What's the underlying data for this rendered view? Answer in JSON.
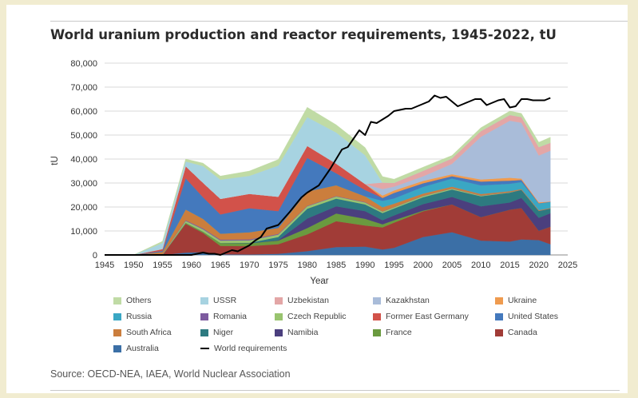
{
  "title": "World uranium production and reactor requirements, 1945-2022, tU",
  "source": "Source: OECD-NEA, IAEA, World Nuclear Association",
  "chart_data": {
    "type": "area",
    "title": "World uranium production and reactor requirements, 1945-2022, tU",
    "xlabel": "Year",
    "ylabel": "tU",
    "xlim": [
      1945,
      2025
    ],
    "ylim": [
      0,
      80000
    ],
    "xticks": [
      "1945",
      "1950",
      "1955",
      "1960",
      "1965",
      "1970",
      "1975",
      "1980",
      "1985",
      "1990",
      "1995",
      "2000",
      "2005",
      "2010",
      "2015",
      "2020",
      "2025"
    ],
    "yticks": [
      "0",
      "10,000",
      "20,000",
      "30,000",
      "40,000",
      "50,000",
      "60,000",
      "70,000",
      "80,000"
    ],
    "grid": true,
    "legend_position": "bottom",
    "x": [
      1945,
      1950,
      1955,
      1959,
      1962,
      1965,
      1970,
      1975,
      1980,
      1985,
      1990,
      1993,
      1995,
      2000,
      2005,
      2010,
      2015,
      2017,
      2020,
      2022
    ],
    "series": [
      {
        "name": "Australia",
        "color": "#3b6fa6",
        "values": [
          0,
          0,
          0,
          1000,
          1200,
          300,
          200,
          500,
          1600,
          3300,
          3500,
          2300,
          3000,
          7500,
          9500,
          6000,
          5600,
          6500,
          6200,
          4500
        ]
      },
      {
        "name": "Canada",
        "color": "#a13c37",
        "values": [
          0,
          0,
          0,
          12000,
          8000,
          3500,
          3500,
          4000,
          7000,
          10800,
          8800,
          9200,
          10500,
          10700,
          11600,
          9800,
          13300,
          13100,
          3900,
          7300
        ]
      },
      {
        "name": "France",
        "color": "#6a9a3f",
        "values": [
          0,
          0,
          0,
          400,
          500,
          1200,
          1200,
          1500,
          2600,
          3200,
          2800,
          1300,
          1000,
          300,
          0,
          0,
          0,
          0,
          0,
          0
        ]
      },
      {
        "name": "Namibia",
        "color": "#4b3f7e",
        "values": [
          0,
          0,
          0,
          0,
          0,
          0,
          0,
          200,
          4000,
          3000,
          3200,
          1700,
          2000,
          2700,
          3100,
          4500,
          3000,
          4200,
          5400,
          5600
        ]
      },
      {
        "name": "Niger",
        "color": "#2d7a80",
        "values": [
          0,
          0,
          0,
          0,
          0,
          0,
          200,
          1300,
          4100,
          3200,
          2800,
          3000,
          2900,
          2900,
          3100,
          4200,
          4100,
          3400,
          2900,
          2000
        ]
      },
      {
        "name": "Czech Republic",
        "color": "#99c46f",
        "values": [
          0,
          0,
          200,
          800,
          1000,
          1000,
          1000,
          1000,
          1000,
          900,
          800,
          600,
          500,
          500,
          400,
          250,
          150,
          0,
          0,
          0
        ]
      },
      {
        "name": "Romania",
        "color": "#7d5b9f",
        "values": [
          0,
          0,
          100,
          300,
          400,
          400,
          400,
          300,
          200,
          200,
          200,
          100,
          100,
          100,
          80,
          80,
          60,
          0,
          0,
          0
        ]
      },
      {
        "name": "South Africa",
        "color": "#cb7e3d",
        "values": [
          0,
          0,
          1000,
          4500,
          4000,
          2500,
          3000,
          2500,
          6000,
          4500,
          2400,
          1700,
          1400,
          900,
          700,
          600,
          400,
          300,
          300,
          200
        ]
      },
      {
        "name": "Russia",
        "color": "#3aa7c4",
        "values": [
          0,
          0,
          0,
          0,
          0,
          0,
          0,
          0,
          0,
          0,
          0,
          2700,
          2200,
          2800,
          3400,
          3600,
          3100,
          2900,
          2800,
          2500
        ]
      },
      {
        "name": "United States",
        "color": "#4479bd",
        "values": [
          0,
          0,
          400,
          13000,
          9000,
          8000,
          10000,
          7000,
          14000,
          5000,
          2600,
          1200,
          2300,
          1500,
          1000,
          1600,
          1300,
          900,
          100,
          100
        ]
      },
      {
        "name": "Former East Germany",
        "color": "#d2524a",
        "values": [
          0,
          0,
          800,
          5000,
          6000,
          6500,
          6000,
          6000,
          5000,
          4000,
          2500,
          0,
          0,
          0,
          0,
          0,
          0,
          0,
          0,
          0
        ]
      },
      {
        "name": "Ukraine",
        "color": "#ef9b4f",
        "values": [
          0,
          0,
          0,
          0,
          0,
          0,
          0,
          0,
          0,
          0,
          0,
          1000,
          1000,
          1000,
          800,
          850,
          1200,
          550,
          400,
          100
        ]
      },
      {
        "name": "Kazakhstan",
        "color": "#a9bcd9",
        "values": [
          0,
          0,
          0,
          0,
          0,
          0,
          0,
          0,
          0,
          0,
          0,
          2700,
          1600,
          1900,
          4300,
          17800,
          23800,
          23300,
          19500,
          21200
        ]
      },
      {
        "name": "Uzbekistan",
        "color": "#e3a6a6",
        "values": [
          0,
          0,
          0,
          0,
          0,
          0,
          0,
          0,
          0,
          0,
          0,
          2700,
          1600,
          2300,
          2300,
          2400,
          2400,
          2400,
          3500,
          3300
        ]
      },
      {
        "name": "USSR",
        "color": "#a7d3e1",
        "values": [
          0,
          0,
          2500,
          2000,
          7000,
          8000,
          7500,
          13000,
          12000,
          13000,
          12000,
          0,
          0,
          0,
          0,
          0,
          0,
          0,
          0,
          0
        ]
      },
      {
        "name": "Others",
        "color": "#c0dba5",
        "values": [
          0,
          0,
          700,
          1000,
          1200,
          1500,
          2000,
          2500,
          4100,
          3200,
          3200,
          2500,
          1500,
          1500,
          1200,
          1400,
          1600,
          1500,
          2000,
          2300
        ]
      }
    ],
    "line_series": {
      "name": "World requirements",
      "color": "#000000",
      "x": [
        1945,
        1955,
        1960,
        1962,
        1963,
        1964,
        1965,
        1967,
        1968,
        1970,
        1971,
        1972,
        1973,
        1975,
        1977,
        1979,
        1980,
        1982,
        1983,
        1984,
        1985,
        1986,
        1987,
        1988,
        1989,
        1990,
        1991,
        1992,
        1993,
        1994,
        1995,
        1996,
        1997,
        1998,
        1999,
        2000,
        2001,
        2002,
        2003,
        2004,
        2005,
        2006,
        2007,
        2008,
        2009,
        2010,
        2011,
        2012,
        2013,
        2014,
        2015,
        2016,
        2017,
        2018,
        2019,
        2020,
        2021,
        2022
      ],
      "values": [
        0,
        0,
        0,
        1000,
        500,
        500,
        0,
        2000,
        1500,
        4000,
        6000,
        7500,
        11000,
        12500,
        18000,
        24000,
        26000,
        29000,
        32500,
        36000,
        40000,
        44000,
        45000,
        48500,
        52000,
        50000,
        55500,
        55000,
        56500,
        58000,
        60000,
        60500,
        61000,
        61000,
        62000,
        63000,
        64000,
        66500,
        65500,
        66000,
        64000,
        62000,
        63000,
        64000,
        65000,
        65000,
        62500,
        63500,
        64500,
        65000,
        61500,
        62000,
        65000,
        65000,
        64500,
        64500,
        64500,
        65500
      ]
    },
    "legend": [
      "Others",
      "USSR",
      "Uzbekistan",
      "Kazakhstan",
      "Ukraine",
      "Russia",
      "Romania",
      "Czech Republic",
      "Former East Germany",
      "United States",
      "South Africa",
      "Niger",
      "Namibia",
      "France",
      "Canada",
      "Australia",
      "World requirements"
    ]
  }
}
